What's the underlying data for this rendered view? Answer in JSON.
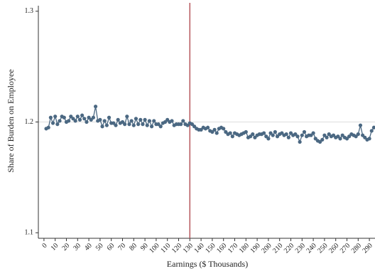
{
  "chart_data": {
    "type": "line",
    "xlabel": "Earnings ($ Thousands)",
    "ylabel": "Share of Burden on Employee",
    "xlim": [
      -5,
      295
    ],
    "ylim": [
      1.095,
      1.305
    ],
    "xticks": [
      0,
      10,
      20,
      30,
      40,
      50,
      60,
      70,
      80,
      90,
      100,
      110,
      120,
      130,
      140,
      150,
      160,
      170,
      180,
      190,
      200,
      210,
      220,
      230,
      240,
      250,
      260,
      270,
      280,
      290
    ],
    "yticks": [
      1.1,
      1.2,
      1.3
    ],
    "vline": 130,
    "vline_color": "#b5575c",
    "hline": 1.2,
    "hline_color": "#dddddd",
    "x": [
      2,
      4,
      6,
      8,
      10,
      12,
      14,
      16,
      18,
      20,
      22,
      24,
      26,
      28,
      30,
      32,
      34,
      36,
      38,
      40,
      42,
      44,
      46,
      48,
      50,
      52,
      54,
      56,
      58,
      60,
      62,
      64,
      66,
      68,
      70,
      72,
      74,
      76,
      78,
      80,
      82,
      84,
      86,
      88,
      90,
      92,
      94,
      96,
      98,
      100,
      102,
      104,
      106,
      108,
      110,
      112,
      114,
      116,
      118,
      120,
      122,
      124,
      126,
      128,
      130,
      132,
      134,
      136,
      138,
      140,
      142,
      144,
      146,
      148,
      150,
      152,
      154,
      156,
      158,
      160,
      162,
      164,
      166,
      168,
      170,
      172,
      174,
      176,
      178,
      180,
      182,
      184,
      186,
      188,
      190,
      192,
      194,
      196,
      198,
      200,
      202,
      204,
      206,
      208,
      210,
      212,
      214,
      216,
      218,
      220,
      222,
      224,
      226,
      228,
      230,
      232,
      234,
      236,
      238,
      240,
      242,
      244,
      246,
      248,
      250,
      252,
      254,
      256,
      258,
      260,
      262,
      264,
      266,
      268,
      270,
      272,
      274,
      276,
      278,
      280,
      282,
      284,
      286,
      288,
      290,
      292,
      294
    ],
    "series": [
      {
        "color": "#4b6882",
        "values": [
          1.194,
          1.195,
          1.204,
          1.199,
          1.205,
          1.198,
          1.201,
          1.205,
          1.204,
          1.2,
          1.201,
          1.205,
          1.203,
          1.201,
          1.205,
          1.202,
          1.206,
          1.203,
          1.2,
          1.204,
          1.202,
          1.204,
          1.214,
          1.201,
          1.202,
          1.196,
          1.201,
          1.197,
          1.204,
          1.199,
          1.199,
          1.197,
          1.202,
          1.199,
          1.2,
          1.198,
          1.205,
          1.198,
          1.201,
          1.197,
          1.203,
          1.198,
          1.202,
          1.198,
          1.202,
          1.197,
          1.201,
          1.196,
          1.201,
          1.198,
          1.198,
          1.196,
          1.199,
          1.2,
          1.202,
          1.2,
          1.201,
          1.197,
          1.198,
          1.198,
          1.198,
          1.201,
          1.198,
          1.197,
          1.199,
          1.198,
          1.196,
          1.194,
          1.193,
          1.193,
          1.195,
          1.194,
          1.195,
          1.192,
          1.191,
          1.193,
          1.19,
          1.194,
          1.195,
          1.194,
          1.191,
          1.189,
          1.19,
          1.187,
          1.19,
          1.189,
          1.188,
          1.189,
          1.19,
          1.191,
          1.186,
          1.187,
          1.189,
          1.186,
          1.188,
          1.189,
          1.189,
          1.19,
          1.187,
          1.185,
          1.19,
          1.188,
          1.191,
          1.187,
          1.189,
          1.19,
          1.188,
          1.189,
          1.186,
          1.19,
          1.188,
          1.189,
          1.187,
          1.182,
          1.188,
          1.191,
          1.187,
          1.188,
          1.188,
          1.19,
          1.185,
          1.183,
          1.182,
          1.184,
          1.188,
          1.186,
          1.189,
          1.187,
          1.188,
          1.186,
          1.187,
          1.185,
          1.188,
          1.186,
          1.185,
          1.187,
          1.189,
          1.188,
          1.187,
          1.189,
          1.197,
          1.188,
          1.186,
          1.184,
          1.185,
          1.192,
          1.195
        ]
      }
    ]
  }
}
